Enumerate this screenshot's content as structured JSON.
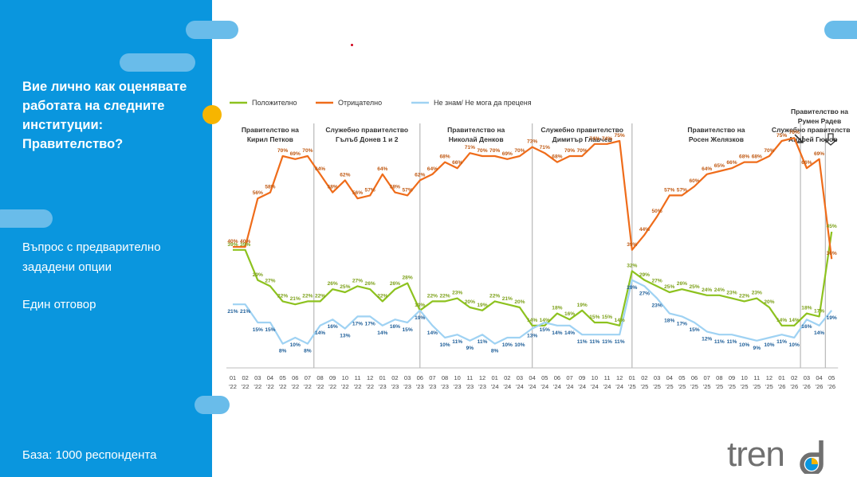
{
  "panel": {
    "title": "Вие лично как оценявате работата на следните институции: Правителство?",
    "question_type": "Въпрос с предварително зададени опции",
    "answer_type": "Един отговор",
    "base": "База:  1000 респондента"
  },
  "brand": {
    "logo_text": "trend"
  },
  "colors": {
    "panel": "#0a96de",
    "positive": "#8dc21f",
    "negative": "#ef6c1a",
    "unknown": "#9fd2f3",
    "accent": "#f7b500"
  },
  "chart_data": {
    "type": "line",
    "x": [
      "01 '22",
      "02 '22",
      "03 '22",
      "04 '22",
      "05 '22",
      "06 '22",
      "07 '22",
      "08 '22",
      "09 '22",
      "10 '22",
      "11 '22",
      "12 '22",
      "01 '23",
      "02 '23",
      "03 '23",
      "06 '23",
      "07 '23",
      "08 '23",
      "10 '23",
      "11 '23",
      "12 '23",
      "01 '24",
      "02 '24",
      "03 '24",
      "04 '24",
      "05 '24",
      "06 '24",
      "07 '24",
      "09 '24",
      "10 '24",
      "11 '24",
      "12 '24",
      "01 '25",
      "02 '25",
      "03 '25",
      "04 '25",
      "05 '25",
      "06 '25",
      "07 '25",
      "08 '25",
      "09 '25",
      "10 '25",
      "11 '25",
      "12 '25",
      "01 '26",
      "02 '26",
      "03 '26",
      "04 '26",
      "05 '26"
    ],
    "series": [
      {
        "name": "Положително",
        "color": "#8dc21f",
        "values": [
          39,
          39,
          29,
          27,
          22,
          21,
          22,
          22,
          26,
          25,
          27,
          26,
          22,
          26,
          28,
          19,
          22,
          22,
          23,
          20,
          19,
          22,
          21,
          20,
          14,
          14,
          18,
          16,
          19,
          15,
          15,
          14,
          32,
          29,
          27,
          25,
          26,
          25,
          24,
          24,
          23,
          22,
          23,
          20,
          14,
          14,
          18,
          17,
          45
        ]
      },
      {
        "name": "Отрицателно",
        "color": "#ef6c1a",
        "values": [
          40,
          40,
          56,
          58,
          70,
          69,
          70,
          64,
          58,
          62,
          56,
          57,
          64,
          58,
          57,
          62,
          64,
          68,
          66,
          71,
          70,
          70,
          69,
          70,
          73,
          71,
          68,
          70,
          70,
          74,
          74,
          75,
          39,
          44,
          50,
          57,
          57,
          60,
          64,
          65,
          66,
          68,
          68,
          70,
          75,
          76,
          66,
          69,
          36
        ]
      },
      {
        "name": "Не знам/ Не мога да преценя",
        "color": "#9fd2f3",
        "values": [
          21,
          21,
          15,
          15,
          8,
          10,
          8,
          14,
          16,
          13,
          17,
          17,
          14,
          16,
          15,
          19,
          14,
          10,
          11,
          9,
          11,
          8,
          10,
          10,
          13,
          15,
          14,
          14,
          11,
          11,
          11,
          11,
          29,
          27,
          23,
          18,
          17,
          15,
          12,
          11,
          11,
          10,
          9,
          10,
          11,
          10,
          16,
          14,
          19
        ]
      }
    ],
    "periods": [
      {
        "label": [
          "Правителство на",
          "Кирил Петков"
        ],
        "start": 0
      },
      {
        "label": [
          "Служебно правителство",
          "Гълъб Донев 1 и 2"
        ],
        "start": 6.5
      },
      {
        "label": [
          "Правителство на",
          "Николай Денков"
        ],
        "start": 15
      },
      {
        "label": [
          "Служебно правителство",
          "Димитър Главчев"
        ],
        "start": 24
      },
      {
        "label": [
          "Правителство на",
          "Росен Желязков"
        ],
        "start": 32
      },
      {
        "label": [
          "Служебно правителство",
          "Андрей Гюров"
        ],
        "start": 45.5
      },
      {
        "label": [
          "Правителство на",
          "Румен Радев"
        ],
        "start": 47.5
      }
    ],
    "ylim": [
      0,
      85
    ],
    "grid": false,
    "legend": "top-left",
    "data_labels": true
  }
}
